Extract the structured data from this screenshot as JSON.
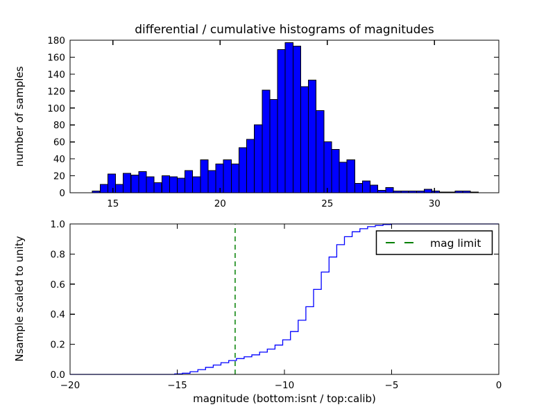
{
  "figure": {
    "title": "differential / cumulative histograms of magnitudes",
    "background": "#ffffff"
  },
  "colors": {
    "bar_fill": "#0000ff",
    "bar_edge": "#000000",
    "cumulative_line": "#0000ff",
    "mag_limit_line": "#008000",
    "axis": "#000000",
    "text": "#000000",
    "legend_background": "#ffffff"
  },
  "chart_data": [
    {
      "type": "bar",
      "subplot": "top",
      "title": "differential / cumulative histograms of magnitudes",
      "xlabel": "",
      "ylabel": "number of samples",
      "xlim": [
        13,
        33
      ],
      "ylim": [
        0,
        180
      ],
      "grid": false,
      "bin_start": 14.04,
      "bin_width": 0.36,
      "counts": [
        2,
        10,
        22,
        10,
        23,
        21,
        25,
        19,
        12,
        20,
        19,
        17,
        26,
        19,
        39,
        26,
        34,
        39,
        34,
        53,
        63,
        80,
        121,
        110,
        169,
        177,
        173,
        125,
        133,
        97,
        60,
        51,
        36,
        39,
        11,
        14,
        9,
        3,
        6,
        2,
        2,
        2,
        2,
        4,
        2,
        1,
        1,
        2,
        2,
        1
      ],
      "xticks": [
        15,
        20,
        25,
        30
      ],
      "yticks": [
        0,
        20,
        40,
        60,
        80,
        100,
        120,
        140,
        160,
        180
      ]
    },
    {
      "type": "line",
      "subplot": "bottom",
      "style": "step-cumulative",
      "xlabel": "magnitude (bottom:isnt / top:calib)",
      "ylabel": "Nsample scaled to unity",
      "xlim": [
        -20,
        0
      ],
      "ylim": [
        0.0,
        1.0
      ],
      "grid": false,
      "step_start": -15.12,
      "step_width": 0.36,
      "cumulative": [
        0.003,
        0.008,
        0.018,
        0.032,
        0.047,
        0.062,
        0.078,
        0.092,
        0.105,
        0.117,
        0.13,
        0.148,
        0.168,
        0.195,
        0.23,
        0.285,
        0.36,
        0.45,
        0.565,
        0.68,
        0.78,
        0.862,
        0.915,
        0.948,
        0.968,
        0.982,
        0.99,
        0.996,
        1.0
      ],
      "xticks": [
        -20,
        -15,
        -10,
        -5,
        0
      ],
      "yticks": [
        0.0,
        0.2,
        0.4,
        0.6,
        0.8,
        1.0
      ],
      "vline": {
        "x": -12.3,
        "color": "#008000",
        "style": "dashed",
        "label": "mag limit"
      },
      "legend": {
        "label": "mag limit",
        "position": "upper right"
      }
    }
  ]
}
